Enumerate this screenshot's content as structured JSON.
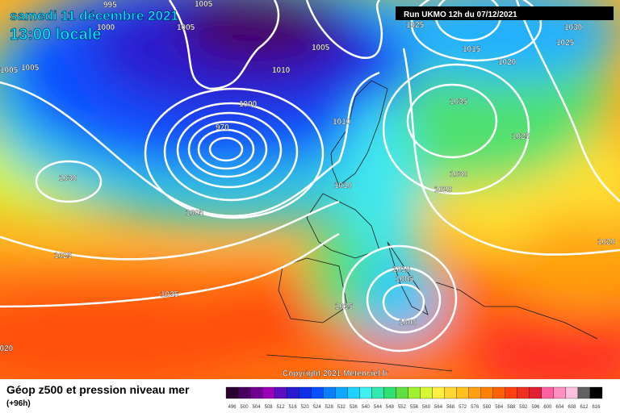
{
  "header": {
    "title_line1": "samedi 11 décembre 2021",
    "title_line2": "13:00 locale",
    "run": "Run UKMO 12h du 07/12/2021"
  },
  "copyright": "Copyright 2021 Meteociel.fr",
  "legend": {
    "title": "Géop z500 et pression niveau mer",
    "subtitle": "(+96h)",
    "labels": [
      496,
      500,
      504,
      508,
      512,
      516,
      520,
      524,
      528,
      532,
      536,
      540,
      544,
      548,
      552,
      556,
      560,
      564,
      568,
      572,
      576,
      580,
      584,
      588,
      592,
      596,
      600,
      604,
      608,
      612,
      616
    ],
    "colors": [
      "#2a0030",
      "#4a0060",
      "#700090",
      "#9a00b8",
      "#5a10c0",
      "#2a1ad0",
      "#1030e8",
      "#0850ff",
      "#0a80ff",
      "#10a8ff",
      "#20d0ff",
      "#40f0f0",
      "#30e8b0",
      "#30e070",
      "#60e040",
      "#a0f030",
      "#d8f830",
      "#fff040",
      "#ffd830",
      "#ffc020",
      "#ffa010",
      "#ff8000",
      "#ff6000",
      "#ff4010",
      "#f03020",
      "#e02030",
      "#ff60a0",
      "#ff90c0",
      "#ffc0e0",
      "#606060",
      "#000000"
    ]
  },
  "isobars": [
    "995",
    "1005",
    "1005",
    "1000",
    "1005",
    "1005",
    "1010",
    "1005",
    "1000",
    "970",
    "1010",
    "1010",
    "1005",
    "1030",
    "1025",
    "1025",
    "1020",
    "1015",
    "1010",
    "1005",
    "1000",
    "1030",
    "1020",
    "1035",
    "1025",
    "1015",
    "1020",
    "1025",
    "1030",
    "1025",
    "1020"
  ]
}
